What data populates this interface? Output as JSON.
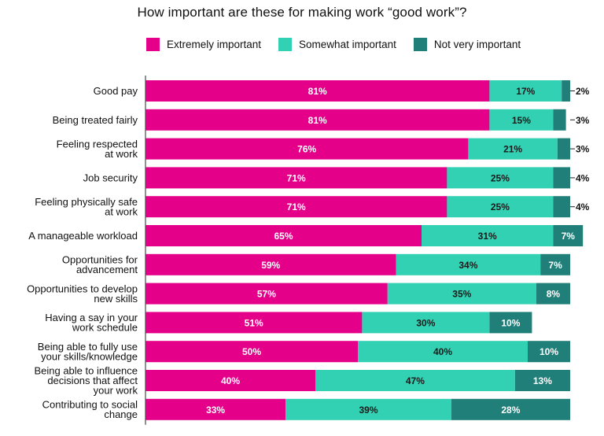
{
  "colors": {
    "extremely": "#e5008a",
    "somewhat": "#33d1b3",
    "not_very": "#217f7a"
  },
  "chart_data": {
    "type": "bar",
    "orientation": "horizontal",
    "stacked": true,
    "title": "How important are these for making work “good work”?",
    "legend_position": "top",
    "categories": [
      [
        "Good pay"
      ],
      [
        "Being treated fairly"
      ],
      [
        "Feeling respected",
        "at work"
      ],
      [
        "Job security"
      ],
      [
        "Feeling physically safe",
        "at work"
      ],
      [
        "A manageable workload"
      ],
      [
        "Opportunities for",
        "advancement"
      ],
      [
        "Opportunities to develop",
        "new skills"
      ],
      [
        "Having a say in your",
        "work schedule"
      ],
      [
        "Being able to fully use",
        "your skills/knowledge"
      ],
      [
        "Being able to influence",
        "decisions that affect",
        "your work"
      ],
      [
        "Contributing to social",
        "change"
      ]
    ],
    "series": [
      {
        "name": "Extremely important",
        "values": [
          81,
          81,
          76,
          71,
          71,
          65,
          59,
          57,
          51,
          50,
          40,
          33
        ]
      },
      {
        "name": "Somewhat important",
        "values": [
          17,
          15,
          21,
          25,
          25,
          31,
          34,
          35,
          30,
          40,
          47,
          39
        ]
      },
      {
        "name": "Not very important",
        "values": [
          2,
          3,
          3,
          4,
          4,
          7,
          7,
          8,
          10,
          10,
          13,
          28
        ]
      }
    ],
    "value_labels": [
      [
        "81%",
        "17%",
        "2%"
      ],
      [
        "81%",
        "15%",
        "3%"
      ],
      [
        "76%",
        "21%",
        "3%"
      ],
      [
        "71%",
        "25%",
        "4%"
      ],
      [
        "71%",
        "25%",
        "4%"
      ],
      [
        "65%",
        "31%",
        "7%"
      ],
      [
        "59%",
        "34%",
        "7%"
      ],
      [
        "57%",
        "35%",
        "8%"
      ],
      [
        "51%",
        "30%",
        "10%"
      ],
      [
        "50%",
        "40%",
        "10%"
      ],
      [
        "40%",
        "47%",
        "13%"
      ],
      [
        "33%",
        "39%",
        "28%"
      ]
    ],
    "xlim": [
      0,
      100
    ],
    "grid": false
  }
}
